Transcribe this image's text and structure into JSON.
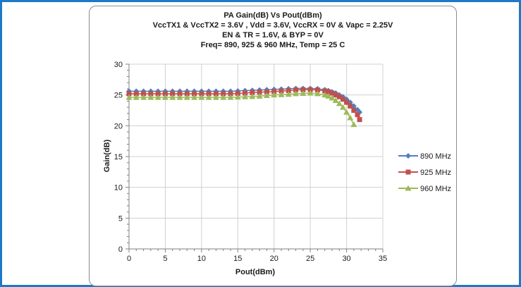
{
  "colors": {
    "frame_border": "#1f78c8",
    "gridline": "#d0d0d0",
    "axis": "#808080"
  },
  "chart_data": {
    "type": "line",
    "title_lines": [
      "PA Gain(dB) Vs Pout(dBm)",
      "VccTX1 & VccTX2 = 3.6V , Vdd  = 3.6V, VccRX = 0V & Vapc = 2.25V",
      "EN & TR = 1.6V, & BYP = 0V",
      "Freq= 890, 925 & 960 MHz, Temp = 25 C"
    ],
    "xlabel": "Pout(dBm)",
    "ylabel": "Gain(dB)",
    "xlim": [
      0,
      35
    ],
    "ylim": [
      0,
      30
    ],
    "xticks": [
      0,
      5,
      10,
      15,
      20,
      25,
      30,
      35
    ],
    "yticks": [
      0,
      5,
      10,
      15,
      20,
      25,
      30
    ],
    "grid": true,
    "legend_position": "right",
    "series": [
      {
        "name": "890 MHz",
        "color": "#4f81bd",
        "marker": "diamond",
        "x": [
          0,
          1,
          2,
          3,
          4,
          5,
          6,
          7,
          8,
          9,
          10,
          11,
          12,
          13,
          14,
          15,
          16,
          17,
          18,
          19,
          20,
          21,
          22,
          23,
          24,
          25,
          26,
          27,
          27.5,
          28,
          28.5,
          29,
          29.5,
          30,
          30.5,
          31,
          31.5,
          31.8
        ],
        "y": [
          25.6,
          25.6,
          25.6,
          25.6,
          25.6,
          25.6,
          25.6,
          25.6,
          25.6,
          25.6,
          25.6,
          25.6,
          25.6,
          25.6,
          25.6,
          25.65,
          25.7,
          25.75,
          25.8,
          25.85,
          25.9,
          25.95,
          26.0,
          26.05,
          26.05,
          26.05,
          26.0,
          25.85,
          25.7,
          25.5,
          25.3,
          25.0,
          24.7,
          24.3,
          23.8,
          23.2,
          22.6,
          22.2
        ]
      },
      {
        "name": "925 MHz",
        "color": "#c0504d",
        "marker": "square",
        "x": [
          0,
          1,
          2,
          3,
          4,
          5,
          6,
          7,
          8,
          9,
          10,
          11,
          12,
          13,
          14,
          15,
          16,
          17,
          18,
          19,
          20,
          21,
          22,
          23,
          24,
          25,
          26,
          27,
          27.5,
          28,
          28.5,
          29,
          29.5,
          30,
          30.5,
          31,
          31.5,
          31.8
        ],
        "y": [
          25.2,
          25.2,
          25.2,
          25.2,
          25.2,
          25.2,
          25.2,
          25.2,
          25.2,
          25.2,
          25.2,
          25.2,
          25.2,
          25.2,
          25.2,
          25.25,
          25.3,
          25.4,
          25.45,
          25.5,
          25.55,
          25.65,
          25.7,
          25.8,
          25.85,
          25.85,
          25.8,
          25.65,
          25.5,
          25.3,
          25.0,
          24.7,
          24.3,
          23.8,
          23.2,
          22.5,
          21.8,
          21.0
        ]
      },
      {
        "name": "960 MHz",
        "color": "#9bbb59",
        "marker": "triangle",
        "x": [
          0,
          1,
          2,
          3,
          4,
          5,
          6,
          7,
          8,
          9,
          10,
          11,
          12,
          13,
          14,
          15,
          16,
          17,
          18,
          19,
          20,
          21,
          22,
          23,
          24,
          25,
          26,
          27,
          27.5,
          28,
          28.5,
          29,
          29.5,
          30,
          30.5,
          31
        ],
        "y": [
          24.6,
          24.6,
          24.6,
          24.6,
          24.6,
          24.6,
          24.6,
          24.6,
          24.6,
          24.6,
          24.6,
          24.6,
          24.6,
          24.6,
          24.6,
          24.65,
          24.7,
          24.75,
          24.8,
          24.9,
          25.0,
          25.05,
          25.1,
          25.2,
          25.25,
          25.3,
          25.2,
          25.0,
          24.8,
          24.5,
          24.1,
          23.6,
          23.0,
          22.2,
          21.3,
          20.2
        ]
      }
    ]
  }
}
